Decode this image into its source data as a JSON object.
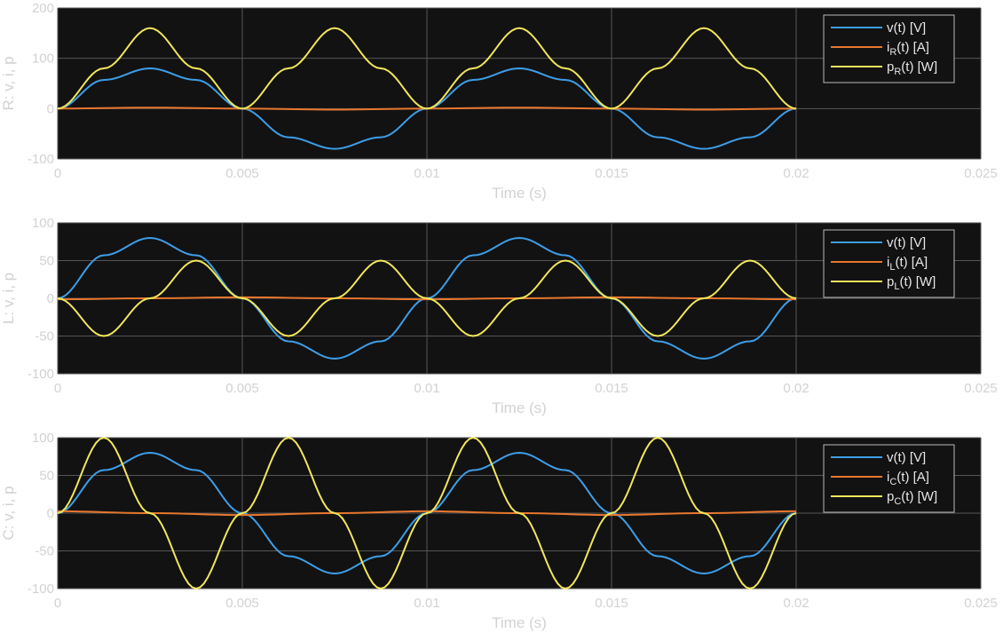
{
  "chart_data": [
    {
      "type": "line",
      "ylabel": "R: v, i, p",
      "xlabel": "Time (s)",
      "xlim": [
        0,
        0.025
      ],
      "ylim": [
        -100,
        200
      ],
      "xticks": [
        0,
        0.005,
        0.01,
        0.015,
        0.02,
        0.025
      ],
      "xtick_labels": [
        "0",
        "0.005",
        "0.01",
        "0.015",
        "0.02",
        "0.025"
      ],
      "yticks": [
        -100,
        0,
        100,
        200
      ],
      "ytick_labels": [
        "-100",
        "0",
        "100",
        "200"
      ],
      "grid": true,
      "legend_position": "top-right",
      "legend": [
        {
          "main": "v(t) [V]",
          "sub": "",
          "post": ""
        },
        {
          "main": "i",
          "sub": "R",
          "post": "(t)  [A]"
        },
        {
          "main": "p",
          "sub": "R",
          "post": "(t)  [W]"
        }
      ],
      "series": [
        {
          "color": "#3d9ee8",
          "x": [
            0,
            0.00125,
            0.0025,
            0.00375,
            0.005,
            0.00625,
            0.0075,
            0.00875,
            0.01,
            0.01125,
            0.0125,
            0.01375,
            0.015,
            0.01625,
            0.0175,
            0.01875,
            0.02
          ],
          "y": [
            0,
            57,
            80,
            57,
            0,
            -57,
            -80,
            -57,
            0,
            57,
            80,
            57,
            0,
            -57,
            -80,
            -57,
            0
          ]
        },
        {
          "color": "#e8772e",
          "x": [
            0,
            0.0025,
            0.005,
            0.0075,
            0.01,
            0.0125,
            0.015,
            0.0175,
            0.02
          ],
          "y": [
            0,
            2,
            0,
            -2,
            0,
            2,
            0,
            -2,
            0
          ]
        },
        {
          "color": "#f2e65c",
          "x": [
            0,
            0.00125,
            0.0025,
            0.00375,
            0.005,
            0.00625,
            0.0075,
            0.00875,
            0.01,
            0.01125,
            0.0125,
            0.01375,
            0.015,
            0.01625,
            0.0175,
            0.01875,
            0.02
          ],
          "y": [
            0,
            80,
            160,
            80,
            0,
            80,
            160,
            80,
            0,
            80,
            160,
            80,
            0,
            80,
            160,
            80,
            0
          ]
        }
      ]
    },
    {
      "type": "line",
      "ylabel": "L: v, i, p",
      "xlabel": "Time (s)",
      "xlim": [
        0,
        0.025
      ],
      "ylim": [
        -100,
        100
      ],
      "xticks": [
        0,
        0.005,
        0.01,
        0.015,
        0.02,
        0.025
      ],
      "xtick_labels": [
        "0",
        "0.005",
        "0.01",
        "0.015",
        "0.02",
        "0.025"
      ],
      "yticks": [
        -100,
        -50,
        0,
        50,
        100
      ],
      "ytick_labels": [
        "-100",
        "-50",
        "0",
        "50",
        "100"
      ],
      "grid": true,
      "legend_position": "top-right",
      "legend": [
        {
          "main": "v(t) [V]",
          "sub": "",
          "post": ""
        },
        {
          "main": "i",
          "sub": "L",
          "post": "(t)  [A]"
        },
        {
          "main": "p",
          "sub": "L",
          "post": "(t)  [W]"
        }
      ],
      "series": [
        {
          "color": "#3d9ee8",
          "x": [
            0,
            0.00125,
            0.0025,
            0.00375,
            0.005,
            0.00625,
            0.0075,
            0.00875,
            0.01,
            0.01125,
            0.0125,
            0.01375,
            0.015,
            0.01625,
            0.0175,
            0.01875,
            0.02
          ],
          "y": [
            0,
            57,
            80,
            57,
            0,
            -57,
            -80,
            -57,
            0,
            57,
            80,
            57,
            0,
            -57,
            -80,
            -57,
            0
          ]
        },
        {
          "color": "#e8772e",
          "x": [
            0,
            0.0025,
            0.005,
            0.0075,
            0.01,
            0.0125,
            0.015,
            0.0175,
            0.02
          ],
          "y": [
            -1.3,
            0,
            1.3,
            0,
            -1.3,
            0,
            1.3,
            0,
            -1.3
          ]
        },
        {
          "color": "#f2e65c",
          "x": [
            0,
            0.00125,
            0.0025,
            0.00375,
            0.005,
            0.00625,
            0.0075,
            0.00875,
            0.01,
            0.01125,
            0.0125,
            0.01375,
            0.015,
            0.01625,
            0.0175,
            0.01875,
            0.02
          ],
          "y": [
            0,
            -50,
            0,
            50,
            0,
            -50,
            0,
            50,
            0,
            -50,
            0,
            50,
            0,
            -50,
            0,
            50,
            0
          ]
        }
      ]
    },
    {
      "type": "line",
      "ylabel": "C: v, i, p",
      "xlabel": "Time (s)",
      "xlim": [
        0,
        0.025
      ],
      "ylim": [
        -100,
        100
      ],
      "xticks": [
        0,
        0.005,
        0.01,
        0.015,
        0.02,
        0.025
      ],
      "xtick_labels": [
        "0",
        "0.005",
        "0.01",
        "0.015",
        "0.02",
        "0.025"
      ],
      "yticks": [
        -100,
        -50,
        0,
        50,
        100
      ],
      "ytick_labels": [
        "-100",
        "-50",
        "0",
        "50",
        "100"
      ],
      "grid": true,
      "legend_position": "top-right",
      "legend": [
        {
          "main": "v(t) [V]",
          "sub": "",
          "post": ""
        },
        {
          "main": "i",
          "sub": "C",
          "post": "(t)  [A]"
        },
        {
          "main": "p",
          "sub": "C",
          "post": "(t)  [W]"
        }
      ],
      "series": [
        {
          "color": "#3d9ee8",
          "x": [
            0,
            0.00125,
            0.0025,
            0.00375,
            0.005,
            0.00625,
            0.0075,
            0.00875,
            0.01,
            0.01125,
            0.0125,
            0.01375,
            0.015,
            0.01625,
            0.0175,
            0.01875,
            0.02
          ],
          "y": [
            0,
            57,
            80,
            57,
            0,
            -57,
            -80,
            -57,
            0,
            57,
            80,
            57,
            0,
            -57,
            -80,
            -57,
            0
          ]
        },
        {
          "color": "#e8772e",
          "x": [
            0,
            0.0025,
            0.005,
            0.0075,
            0.01,
            0.0125,
            0.015,
            0.0175,
            0.02
          ],
          "y": [
            2.5,
            0,
            -2.5,
            0,
            2.5,
            0,
            -2.5,
            0,
            2.5
          ]
        },
        {
          "color": "#f2e65c",
          "x": [
            0,
            0.00125,
            0.0025,
            0.00375,
            0.005,
            0.00625,
            0.0075,
            0.00875,
            0.01,
            0.01125,
            0.0125,
            0.01375,
            0.015,
            0.01625,
            0.0175,
            0.01875,
            0.02
          ],
          "y": [
            0,
            100,
            0,
            -100,
            0,
            100,
            0,
            -100,
            0,
            100,
            0,
            -100,
            0,
            100,
            0,
            -100,
            0
          ]
        }
      ]
    }
  ],
  "colors": {
    "axes_bg": "#121212",
    "grid": "#555555",
    "tick_text": "#d2d2d2",
    "legend_border": "#bbbbbb"
  }
}
